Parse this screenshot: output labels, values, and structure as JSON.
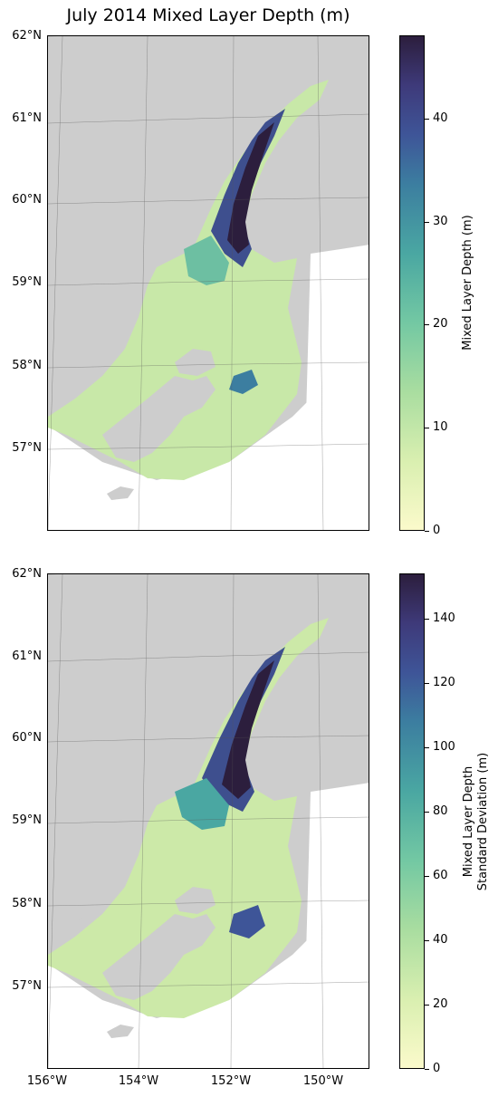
{
  "title": "July 2014 Mixed Layer Depth (m)",
  "latitude_labels": [
    "62°N",
    "61°N",
    "60°N",
    "59°N",
    "58°N",
    "57°N"
  ],
  "longitude_labels": [
    "156°W",
    "154°W",
    "152°W",
    "150°W"
  ],
  "colormap": {
    "name": "deep",
    "low_color": "#fbfacb",
    "high_color": "#2c1e3d"
  },
  "land_color": "#cdcdcd",
  "panels": [
    {
      "id": "mean",
      "colorbar_label": "Mixed Layer Depth (m)",
      "colorbar_ticks": [
        "0",
        "10",
        "20",
        "30",
        "40"
      ],
      "colorbar_range": [
        0,
        48
      ]
    },
    {
      "id": "stddev",
      "colorbar_label_line1": "Mixed Layer Depth",
      "colorbar_label_line2": "Standard Deviation (m)",
      "colorbar_ticks": [
        "0",
        "20",
        "40",
        "60",
        "80",
        "100",
        "120",
        "140"
      ],
      "colorbar_range": [
        0,
        154
      ]
    }
  ]
}
